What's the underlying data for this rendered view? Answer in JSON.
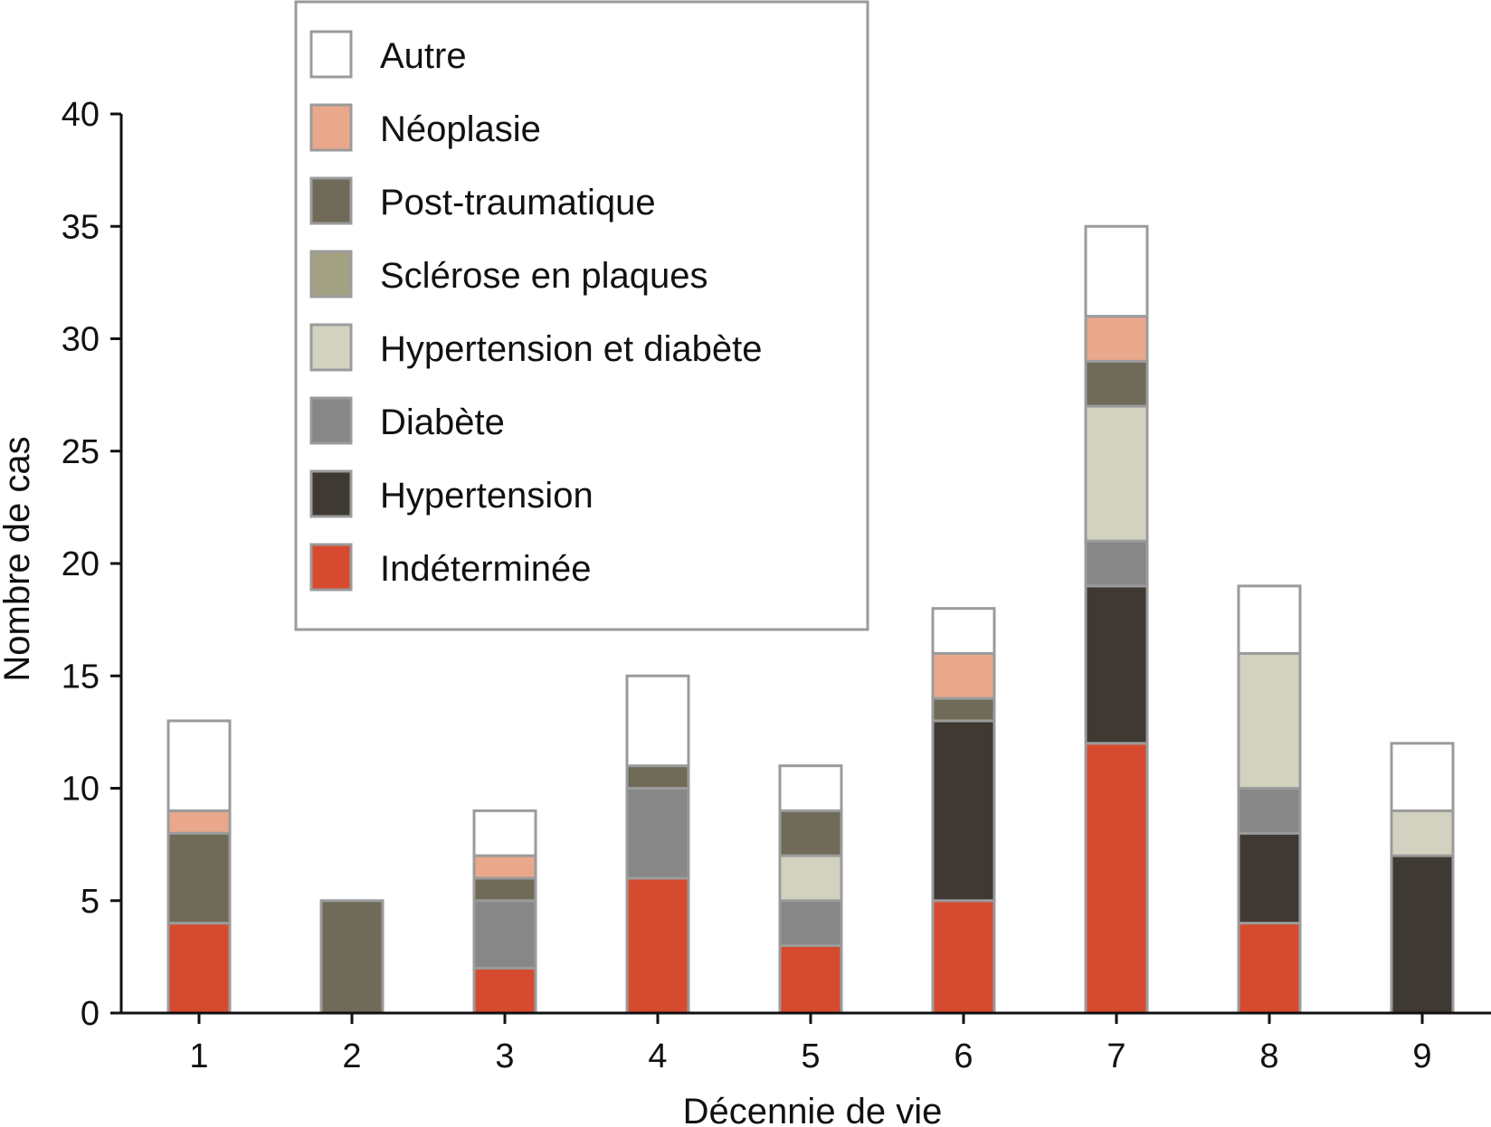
{
  "chart_data": {
    "type": "bar",
    "stacked": true,
    "title": "",
    "xlabel": "Décennie de vie",
    "ylabel": "Nombre de cas",
    "categories": [
      "1",
      "2",
      "3",
      "4",
      "5",
      "6",
      "7",
      "8",
      "9"
    ],
    "ylim": [
      0,
      40
    ],
    "yticks": [
      "0",
      "5",
      "10",
      "15",
      "20",
      "25",
      "30",
      "35",
      "40"
    ],
    "grid": false,
    "legend_position": "top-left",
    "bar_border_color": "#9b9b9b",
    "series": [
      {
        "name": "Indéterminée",
        "color": "#d64b2f",
        "values": [
          4,
          0,
          2,
          6,
          3,
          5,
          12,
          4,
          0
        ]
      },
      {
        "name": "Hypertension",
        "color": "#3e3a33",
        "values": [
          0,
          0,
          0,
          0,
          0,
          8,
          7,
          4,
          7
        ]
      },
      {
        "name": "Diabète",
        "color": "#878787",
        "values": [
          0,
          0,
          3,
          4,
          2,
          0,
          2,
          2,
          0
        ]
      },
      {
        "name": "Hypertension et diabète",
        "color": "#d3d2c1",
        "values": [
          0,
          0,
          0,
          0,
          2,
          0,
          6,
          6,
          2
        ]
      },
      {
        "name": "Sclérose en plaques",
        "color": "#a2a182",
        "values": [
          0,
          0,
          0,
          0,
          0,
          0,
          0,
          0,
          0
        ]
      },
      {
        "name": "Post-traumatique",
        "color": "#6f6b58",
        "values": [
          4,
          5,
          1,
          1,
          2,
          1,
          2,
          0,
          0
        ]
      },
      {
        "name": "Néoplasie",
        "color": "#e9a88c",
        "values": [
          1,
          0,
          1,
          0,
          0,
          2,
          2,
          0,
          0
        ]
      },
      {
        "name": "Autre",
        "color": "#ffffff",
        "values": [
          4,
          0,
          2,
          4,
          2,
          2,
          4,
          3,
          3
        ]
      }
    ]
  }
}
